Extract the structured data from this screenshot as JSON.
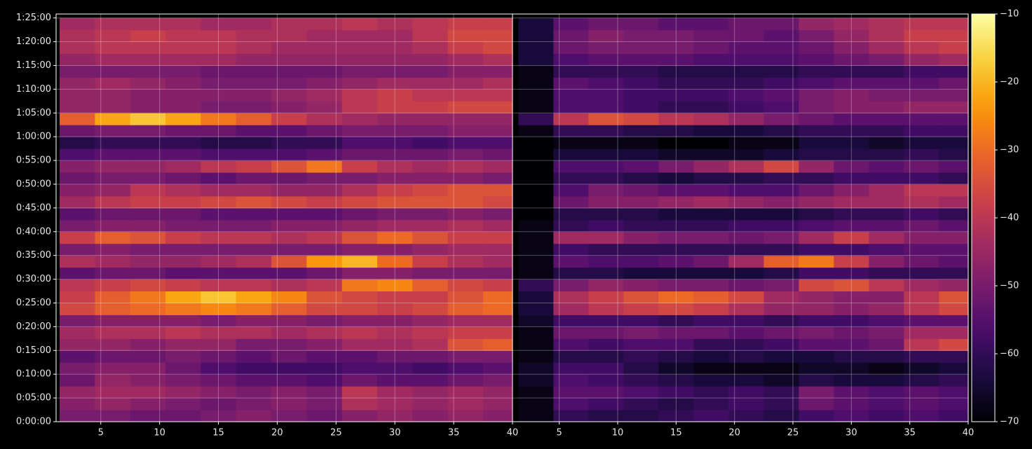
{
  "chart_data": {
    "type": "heatmap",
    "colormap": "inferno",
    "grid": true,
    "y": [
      75,
      225,
      375,
      525,
      675,
      825,
      975,
      1125,
      1275,
      1425,
      1575,
      1725,
      1875,
      2025,
      2175,
      2325,
      2475,
      2625,
      2775,
      2925,
      3075,
      3225,
      3375,
      3525,
      3675,
      3825,
      3975,
      4125,
      4275,
      4425,
      4575,
      4725,
      4875,
      5025
    ],
    "ylim": [
      0,
      5150
    ],
    "yticks": [
      {
        "value": 0,
        "label": "0:00:00"
      },
      {
        "value": 300,
        "label": "0:05:00"
      },
      {
        "value": 600,
        "label": "0:10:00"
      },
      {
        "value": 900,
        "label": "0:15:00"
      },
      {
        "value": 1200,
        "label": "0:20:00"
      },
      {
        "value": 1500,
        "label": "0:25:00"
      },
      {
        "value": 1800,
        "label": "0:30:00"
      },
      {
        "value": 2100,
        "label": "0:35:00"
      },
      {
        "value": 2400,
        "label": "0:40:00"
      },
      {
        "value": 2700,
        "label": "0:45:00"
      },
      {
        "value": 3000,
        "label": "0:50:00"
      },
      {
        "value": 3300,
        "label": "0:55:00"
      },
      {
        "value": 3600,
        "label": "1:00:00"
      },
      {
        "value": 3900,
        "label": "1:05:00"
      },
      {
        "value": 4200,
        "label": "1:10:00"
      },
      {
        "value": 4500,
        "label": "1:15:00"
      },
      {
        "value": 4800,
        "label": "1:20:00"
      },
      {
        "value": 5100,
        "label": "1:25:00"
      }
    ],
    "colorbar": {
      "lim": [
        -70,
        -10
      ],
      "ticks": [
        {
          "value": -70,
          "label": "−70"
        },
        {
          "value": -60,
          "label": "−60"
        },
        {
          "value": -50,
          "label": "−50"
        },
        {
          "value": -40,
          "label": "−40"
        },
        {
          "value": -30,
          "label": "−30"
        },
        {
          "value": -20,
          "label": "−20"
        },
        {
          "value": -10,
          "label": "−10"
        }
      ]
    },
    "panels": [
      {
        "x": [
          3,
          6,
          9,
          12,
          15,
          18,
          21,
          24,
          27,
          30,
          33,
          36,
          39
        ],
        "xlim": [
          1.2,
          40
        ],
        "xticks": [
          5,
          10,
          15,
          20,
          25,
          30,
          35,
          40
        ],
        "z": [
          [
            -50,
            -50,
            -52,
            -52,
            -50,
            -48,
            -50,
            -52,
            -48,
            -46,
            -48,
            -46,
            -48
          ],
          [
            -48,
            -46,
            -48,
            -50,
            -52,
            -50,
            -48,
            -50,
            -42,
            -44,
            -46,
            -44,
            -46
          ],
          [
            -46,
            -44,
            -44,
            -46,
            -48,
            -50,
            -48,
            -50,
            -40,
            -44,
            -46,
            -44,
            -46
          ],
          [
            -52,
            -46,
            -48,
            -50,
            -52,
            -54,
            -54,
            -56,
            -52,
            -54,
            -54,
            -52,
            -50
          ],
          [
            -50,
            -48,
            -48,
            -52,
            -56,
            -58,
            -58,
            -58,
            -56,
            -56,
            -58,
            -56,
            -54
          ],
          [
            -54,
            -52,
            -52,
            -50,
            -52,
            -54,
            -52,
            -54,
            -54,
            -52,
            -52,
            -50,
            -50
          ],
          [
            -46,
            -46,
            -48,
            -46,
            -46,
            -50,
            -50,
            -48,
            -44,
            -44,
            -42,
            -34,
            -32
          ],
          [
            -44,
            -42,
            -42,
            -40,
            -42,
            -42,
            -44,
            -42,
            -40,
            -42,
            -40,
            -38,
            -38
          ],
          [
            -50,
            -48,
            -48,
            -48,
            -50,
            -48,
            -48,
            -50,
            -48,
            -48,
            -46,
            -44,
            -44
          ],
          [
            -36,
            -32,
            -30,
            -28,
            -26,
            -28,
            -32,
            -36,
            -36,
            -38,
            -36,
            -32,
            -30
          ],
          [
            -38,
            -32,
            -28,
            -22,
            -18,
            -22,
            -26,
            -34,
            -36,
            -38,
            -38,
            -34,
            -30
          ],
          [
            -40,
            -38,
            -36,
            -38,
            -40,
            -40,
            -42,
            -40,
            -28,
            -26,
            -32,
            -36,
            -38
          ],
          [
            -54,
            -52,
            -52,
            -54,
            -54,
            -54,
            -54,
            -52,
            -48,
            -48,
            -50,
            -50,
            -50
          ],
          [
            -42,
            -44,
            -46,
            -46,
            -44,
            -42,
            -34,
            -24,
            -20,
            -30,
            -38,
            -42,
            -44
          ],
          [
            -50,
            -48,
            -50,
            -50,
            -50,
            -50,
            -50,
            -50,
            -48,
            -48,
            -46,
            -44,
            -44
          ],
          [
            -38,
            -32,
            -34,
            -38,
            -40,
            -40,
            -42,
            -40,
            -34,
            -30,
            -34,
            -38,
            -38
          ],
          [
            -50,
            -48,
            -48,
            -50,
            -50,
            -50,
            -48,
            -48,
            -46,
            -44,
            -44,
            -42,
            -44
          ],
          [
            -54,
            -52,
            -52,
            -52,
            -54,
            -54,
            -54,
            -54,
            -52,
            -50,
            -50,
            -48,
            -50
          ],
          [
            -44,
            -40,
            -38,
            -38,
            -36,
            -34,
            -36,
            -38,
            -36,
            -34,
            -34,
            -34,
            -36
          ],
          [
            -48,
            -46,
            -40,
            -42,
            -44,
            -44,
            -46,
            -46,
            -42,
            -38,
            -36,
            -34,
            -34
          ],
          [
            -52,
            -50,
            -50,
            -52,
            -54,
            -52,
            -52,
            -50,
            -50,
            -48,
            -48,
            -48,
            -50
          ],
          [
            -48,
            -46,
            -46,
            -44,
            -40,
            -38,
            -34,
            -28,
            -38,
            -42,
            -44,
            -42,
            -44
          ],
          [
            -56,
            -54,
            -54,
            -54,
            -56,
            -56,
            -56,
            -54,
            -52,
            -52,
            -52,
            -50,
            -52
          ],
          [
            -62,
            -60,
            -60,
            -60,
            -62,
            -62,
            -60,
            -60,
            -56,
            -56,
            -58,
            -56,
            -56
          ],
          [
            -52,
            -50,
            -50,
            -52,
            -52,
            -54,
            -54,
            -52,
            -50,
            -50,
            -50,
            -48,
            -48
          ],
          [
            -32,
            -22,
            -18,
            -22,
            -28,
            -32,
            -38,
            -42,
            -44,
            -46,
            -46,
            -46,
            -46
          ],
          [
            -46,
            -46,
            -48,
            -48,
            -50,
            -50,
            -48,
            -46,
            -40,
            -38,
            -38,
            -36,
            -36
          ],
          [
            -46,
            -46,
            -48,
            -48,
            -48,
            -48,
            -46,
            -44,
            -40,
            -38,
            -40,
            -40,
            -40
          ],
          [
            -46,
            -44,
            -46,
            -48,
            -50,
            -50,
            -50,
            -48,
            -46,
            -44,
            -44,
            -44,
            -42
          ],
          [
            -50,
            -50,
            -50,
            -50,
            -52,
            -52,
            -52,
            -52,
            -50,
            -50,
            -50,
            -48,
            -48
          ],
          [
            -46,
            -44,
            -44,
            -44,
            -44,
            -46,
            -46,
            -46,
            -46,
            -46,
            -46,
            -44,
            -42
          ],
          [
            -42,
            -40,
            -40,
            -40,
            -40,
            -42,
            -44,
            -44,
            -44,
            -44,
            -42,
            -38,
            -36
          ],
          [
            -42,
            -40,
            -38,
            -40,
            -40,
            -42,
            -42,
            -44,
            -44,
            -44,
            -40,
            -36,
            -36
          ],
          [
            -44,
            -42,
            -42,
            -42,
            -44,
            -44,
            -42,
            -42,
            -40,
            -42,
            -40,
            -38,
            -38
          ]
        ]
      },
      {
        "x": [
          3,
          6,
          9,
          12,
          15,
          18,
          21,
          24,
          27,
          30,
          33,
          36,
          39
        ],
        "xlim": [
          1.0,
          40
        ],
        "xticks": [
          5,
          10,
          15,
          20,
          25,
          30,
          35,
          40
        ],
        "z": [
          [
            -68,
            -60,
            -62,
            -62,
            -60,
            -58,
            -60,
            -62,
            -58,
            -56,
            -58,
            -56,
            -58
          ],
          [
            -68,
            -56,
            -58,
            -60,
            -62,
            -60,
            -58,
            -60,
            -52,
            -54,
            -56,
            -54,
            -56
          ],
          [
            -68,
            -54,
            -54,
            -56,
            -58,
            -60,
            -58,
            -60,
            -50,
            -54,
            -56,
            -54,
            -56
          ],
          [
            -66,
            -56,
            -58,
            -60,
            -62,
            -64,
            -64,
            -66,
            -62,
            -64,
            -64,
            -62,
            -60
          ],
          [
            -66,
            -58,
            -58,
            -62,
            -66,
            -68,
            -68,
            -68,
            -66,
            -66,
            -68,
            -66,
            -64
          ],
          [
            -68,
            -62,
            -62,
            -60,
            -62,
            -64,
            -62,
            -64,
            -64,
            -62,
            -62,
            -60,
            -60
          ],
          [
            -68,
            -56,
            -58,
            -56,
            -56,
            -60,
            -60,
            -58,
            -54,
            -54,
            -52,
            -40,
            -36
          ],
          [
            -68,
            -52,
            -52,
            -50,
            -52,
            -52,
            -54,
            -52,
            -50,
            -52,
            -50,
            -44,
            -44
          ],
          [
            -66,
            -58,
            -58,
            -58,
            -60,
            -58,
            -58,
            -60,
            -58,
            -58,
            -56,
            -54,
            -54
          ],
          [
            -64,
            -44,
            -40,
            -38,
            -36,
            -38,
            -42,
            -46,
            -46,
            -48,
            -46,
            -40,
            -36
          ],
          [
            -64,
            -42,
            -38,
            -34,
            -30,
            -32,
            -36,
            -44,
            -46,
            -48,
            -48,
            -40,
            -34
          ],
          [
            -60,
            -50,
            -46,
            -48,
            -50,
            -50,
            -52,
            -50,
            -36,
            -34,
            -40,
            -44,
            -46
          ],
          [
            -68,
            -62,
            -62,
            -64,
            -64,
            -64,
            -64,
            -62,
            -58,
            -58,
            -60,
            -60,
            -60
          ],
          [
            -68,
            -54,
            -56,
            -56,
            -54,
            -52,
            -44,
            -32,
            -28,
            -38,
            -48,
            -52,
            -54
          ],
          [
            -68,
            -58,
            -60,
            -60,
            -60,
            -60,
            -60,
            -60,
            -58,
            -58,
            -56,
            -54,
            -54
          ],
          [
            -68,
            -44,
            -44,
            -48,
            -50,
            -50,
            -52,
            -50,
            -44,
            -38,
            -44,
            -48,
            -48
          ],
          [
            -68,
            -60,
            -58,
            -60,
            -60,
            -60,
            -58,
            -58,
            -56,
            -54,
            -54,
            -52,
            -54
          ],
          [
            -70,
            -62,
            -62,
            -62,
            -64,
            -64,
            -64,
            -64,
            -62,
            -60,
            -60,
            -58,
            -60
          ],
          [
            -70,
            -52,
            -48,
            -48,
            -46,
            -44,
            -46,
            -48,
            -46,
            -44,
            -44,
            -42,
            -44
          ],
          [
            -70,
            -56,
            -50,
            -52,
            -54,
            -54,
            -56,
            -56,
            -52,
            -48,
            -44,
            -40,
            -40
          ],
          [
            -70,
            -60,
            -60,
            -62,
            -64,
            -62,
            -62,
            -60,
            -60,
            -58,
            -58,
            -58,
            -60
          ],
          [
            -70,
            -56,
            -56,
            -54,
            -50,
            -46,
            -42,
            -36,
            -46,
            -52,
            -54,
            -52,
            -54
          ],
          [
            -70,
            -64,
            -64,
            -64,
            -66,
            -66,
            -66,
            -64,
            -62,
            -62,
            -62,
            -60,
            -62
          ],
          [
            -70,
            -68,
            -68,
            -68,
            -70,
            -70,
            -68,
            -68,
            -64,
            -64,
            -66,
            -64,
            -64
          ],
          [
            -68,
            -60,
            -60,
            -62,
            -62,
            -64,
            -64,
            -62,
            -60,
            -60,
            -60,
            -58,
            -58
          ],
          [
            -60,
            -40,
            -34,
            -36,
            -40,
            -42,
            -46,
            -50,
            -52,
            -54,
            -54,
            -54,
            -54
          ],
          [
            -68,
            -56,
            -56,
            -58,
            -60,
            -60,
            -58,
            -56,
            -50,
            -48,
            -48,
            -46,
            -46
          ],
          [
            -68,
            -56,
            -56,
            -58,
            -58,
            -58,
            -56,
            -54,
            -50,
            -48,
            -50,
            -50,
            -50
          ],
          [
            -68,
            -54,
            -56,
            -58,
            -60,
            -60,
            -60,
            -58,
            -56,
            -54,
            -54,
            -54,
            -52
          ],
          [
            -68,
            -60,
            -60,
            -60,
            -62,
            -62,
            -62,
            -62,
            -60,
            -60,
            -60,
            -58,
            -58
          ],
          [
            -64,
            -56,
            -54,
            -54,
            -54,
            -56,
            -56,
            -56,
            -54,
            -52,
            -50,
            -46,
            -44
          ],
          [
            -64,
            -52,
            -50,
            -50,
            -50,
            -52,
            -54,
            -54,
            -52,
            -48,
            -44,
            -40,
            -38
          ],
          [
            -64,
            -52,
            -48,
            -50,
            -50,
            -52,
            -52,
            -54,
            -50,
            -46,
            -42,
            -38,
            -38
          ],
          [
            -64,
            -54,
            -52,
            -52,
            -54,
            -54,
            -52,
            -52,
            -46,
            -44,
            -42,
            -40,
            -40
          ]
        ]
      }
    ]
  }
}
